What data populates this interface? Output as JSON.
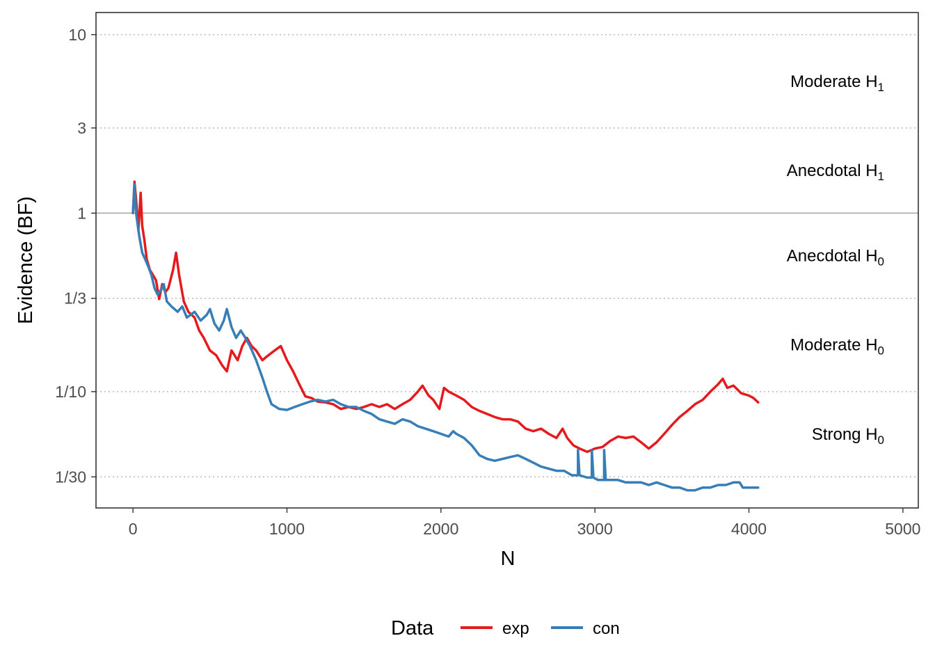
{
  "chart_data": {
    "type": "line",
    "xlabel": "N",
    "ylabel": "Evidence (BF)",
    "xlim": [
      -240,
      5100
    ],
    "ylim": [
      0.0223,
      13.3
    ],
    "y_scale": "log",
    "x_ticks": [
      0,
      1000,
      2000,
      3000,
      4000,
      5000
    ],
    "x_tick_labels": [
      "0",
      "1000",
      "2000",
      "3000",
      "4000",
      "5000"
    ],
    "y_ticks": [
      10,
      3,
      1,
      0.3333,
      0.1,
      0.0333
    ],
    "y_tick_labels": [
      "10",
      "3",
      "1",
      "1/3",
      "1/10",
      "1/30"
    ],
    "reference_line": 1,
    "grid": "horizontal dotted",
    "regions": [
      {
        "label": "Moderate H",
        "sub": "1",
        "y": 5.48
      },
      {
        "label": "Anecdotal H",
        "sub": "1",
        "y": 1.73
      },
      {
        "label": "Anecdotal H",
        "sub": "0",
        "y": 0.577
      },
      {
        "label": "Moderate H",
        "sub": "0",
        "y": 0.183
      },
      {
        "label": "Strong H",
        "sub": "0",
        "y": 0.0577
      }
    ],
    "legend": {
      "title": "Data",
      "position": "bottom"
    },
    "series": [
      {
        "name": "exp",
        "color": "#e41a1c",
        "points": [
          [
            0,
            1.0
          ],
          [
            10,
            1.5
          ],
          [
            20,
            1.2
          ],
          [
            35,
            0.8
          ],
          [
            50,
            1.3
          ],
          [
            60,
            0.85
          ],
          [
            75,
            0.7
          ],
          [
            90,
            0.55
          ],
          [
            110,
            0.48
          ],
          [
            130,
            0.45
          ],
          [
            150,
            0.42
          ],
          [
            170,
            0.33
          ],
          [
            190,
            0.4
          ],
          [
            210,
            0.36
          ],
          [
            230,
            0.38
          ],
          [
            260,
            0.48
          ],
          [
            280,
            0.6
          ],
          [
            300,
            0.45
          ],
          [
            330,
            0.32
          ],
          [
            360,
            0.28
          ],
          [
            400,
            0.26
          ],
          [
            430,
            0.22
          ],
          [
            460,
            0.2
          ],
          [
            500,
            0.17
          ],
          [
            540,
            0.16
          ],
          [
            580,
            0.14
          ],
          [
            610,
            0.13
          ],
          [
            640,
            0.17
          ],
          [
            680,
            0.15
          ],
          [
            710,
            0.18
          ],
          [
            740,
            0.2
          ],
          [
            770,
            0.18
          ],
          [
            800,
            0.17
          ],
          [
            840,
            0.15
          ],
          [
            880,
            0.16
          ],
          [
            920,
            0.17
          ],
          [
            960,
            0.18
          ],
          [
            1000,
            0.15
          ],
          [
            1040,
            0.13
          ],
          [
            1080,
            0.11
          ],
          [
            1120,
            0.094
          ],
          [
            1160,
            0.092
          ],
          [
            1200,
            0.088
          ],
          [
            1250,
            0.087
          ],
          [
            1300,
            0.085
          ],
          [
            1350,
            0.08
          ],
          [
            1400,
            0.082
          ],
          [
            1450,
            0.08
          ],
          [
            1500,
            0.082
          ],
          [
            1550,
            0.085
          ],
          [
            1600,
            0.082
          ],
          [
            1650,
            0.085
          ],
          [
            1700,
            0.08
          ],
          [
            1750,
            0.085
          ],
          [
            1800,
            0.09
          ],
          [
            1850,
            0.1
          ],
          [
            1880,
            0.108
          ],
          [
            1920,
            0.095
          ],
          [
            1950,
            0.09
          ],
          [
            1990,
            0.08
          ],
          [
            2020,
            0.105
          ],
          [
            2050,
            0.1
          ],
          [
            2100,
            0.095
          ],
          [
            2150,
            0.09
          ],
          [
            2200,
            0.082
          ],
          [
            2250,
            0.078
          ],
          [
            2300,
            0.075
          ],
          [
            2350,
            0.072
          ],
          [
            2400,
            0.07
          ],
          [
            2450,
            0.07
          ],
          [
            2500,
            0.068
          ],
          [
            2550,
            0.062
          ],
          [
            2600,
            0.06
          ],
          [
            2650,
            0.062
          ],
          [
            2700,
            0.058
          ],
          [
            2750,
            0.055
          ],
          [
            2790,
            0.062
          ],
          [
            2820,
            0.055
          ],
          [
            2860,
            0.05
          ],
          [
            2900,
            0.048
          ],
          [
            2950,
            0.046
          ],
          [
            3000,
            0.048
          ],
          [
            3050,
            0.049
          ],
          [
            3100,
            0.053
          ],
          [
            3150,
            0.056
          ],
          [
            3200,
            0.055
          ],
          [
            3250,
            0.056
          ],
          [
            3300,
            0.052
          ],
          [
            3350,
            0.048
          ],
          [
            3400,
            0.052
          ],
          [
            3450,
            0.058
          ],
          [
            3500,
            0.065
          ],
          [
            3550,
            0.072
          ],
          [
            3600,
            0.078
          ],
          [
            3650,
            0.085
          ],
          [
            3700,
            0.09
          ],
          [
            3750,
            0.1
          ],
          [
            3800,
            0.11
          ],
          [
            3830,
            0.118
          ],
          [
            3860,
            0.105
          ],
          [
            3900,
            0.108
          ],
          [
            3950,
            0.098
          ],
          [
            4000,
            0.095
          ],
          [
            4030,
            0.092
          ],
          [
            4060,
            0.087
          ]
        ]
      },
      {
        "name": "con",
        "color": "#377eb8",
        "points": [
          [
            0,
            1.0
          ],
          [
            10,
            1.45
          ],
          [
            20,
            1.0
          ],
          [
            40,
            0.75
          ],
          [
            60,
            0.6
          ],
          [
            80,
            0.55
          ],
          [
            100,
            0.5
          ],
          [
            120,
            0.45
          ],
          [
            140,
            0.38
          ],
          [
            160,
            0.35
          ],
          [
            180,
            0.37
          ],
          [
            200,
            0.4
          ],
          [
            220,
            0.32
          ],
          [
            250,
            0.3
          ],
          [
            290,
            0.28
          ],
          [
            320,
            0.3
          ],
          [
            350,
            0.26
          ],
          [
            400,
            0.28
          ],
          [
            440,
            0.25
          ],
          [
            480,
            0.27
          ],
          [
            500,
            0.29
          ],
          [
            530,
            0.24
          ],
          [
            560,
            0.22
          ],
          [
            590,
            0.25
          ],
          [
            610,
            0.29
          ],
          [
            640,
            0.23
          ],
          [
            670,
            0.2
          ],
          [
            700,
            0.22
          ],
          [
            730,
            0.2
          ],
          [
            760,
            0.18
          ],
          [
            800,
            0.15
          ],
          [
            840,
            0.12
          ],
          [
            870,
            0.1
          ],
          [
            900,
            0.085
          ],
          [
            950,
            0.08
          ],
          [
            1000,
            0.079
          ],
          [
            1050,
            0.082
          ],
          [
            1100,
            0.085
          ],
          [
            1150,
            0.088
          ],
          [
            1200,
            0.09
          ],
          [
            1250,
            0.088
          ],
          [
            1300,
            0.09
          ],
          [
            1350,
            0.085
          ],
          [
            1400,
            0.082
          ],
          [
            1450,
            0.082
          ],
          [
            1500,
            0.078
          ],
          [
            1550,
            0.075
          ],
          [
            1600,
            0.07
          ],
          [
            1650,
            0.068
          ],
          [
            1700,
            0.066
          ],
          [
            1750,
            0.07
          ],
          [
            1800,
            0.068
          ],
          [
            1850,
            0.064
          ],
          [
            1900,
            0.062
          ],
          [
            1950,
            0.06
          ],
          [
            2000,
            0.058
          ],
          [
            2050,
            0.056
          ],
          [
            2080,
            0.06
          ],
          [
            2100,
            0.058
          ],
          [
            2150,
            0.055
          ],
          [
            2200,
            0.05
          ],
          [
            2250,
            0.044
          ],
          [
            2300,
            0.042
          ],
          [
            2350,
            0.041
          ],
          [
            2400,
            0.042
          ],
          [
            2450,
            0.043
          ],
          [
            2500,
            0.044
          ],
          [
            2550,
            0.042
          ],
          [
            2600,
            0.04
          ],
          [
            2650,
            0.038
          ],
          [
            2700,
            0.037
          ],
          [
            2750,
            0.036
          ],
          [
            2800,
            0.036
          ],
          [
            2850,
            0.034
          ],
          [
            2890,
            0.034
          ],
          [
            2890,
            0.047
          ],
          [
            2900,
            0.034
          ],
          [
            2950,
            0.033
          ],
          [
            2980,
            0.033
          ],
          [
            2980,
            0.047
          ],
          [
            2990,
            0.033
          ],
          [
            3020,
            0.032
          ],
          [
            3060,
            0.032
          ],
          [
            3060,
            0.047
          ],
          [
            3070,
            0.032
          ],
          [
            3100,
            0.032
          ],
          [
            3150,
            0.032
          ],
          [
            3200,
            0.031
          ],
          [
            3250,
            0.031
          ],
          [
            3300,
            0.031
          ],
          [
            3350,
            0.03
          ],
          [
            3400,
            0.031
          ],
          [
            3450,
            0.03
          ],
          [
            3500,
            0.029
          ],
          [
            3550,
            0.029
          ],
          [
            3600,
            0.028
          ],
          [
            3650,
            0.028
          ],
          [
            3700,
            0.029
          ],
          [
            3750,
            0.029
          ],
          [
            3800,
            0.03
          ],
          [
            3850,
            0.03
          ],
          [
            3900,
            0.031
          ],
          [
            3940,
            0.031
          ],
          [
            3960,
            0.029
          ],
          [
            4000,
            0.029
          ],
          [
            4060,
            0.029
          ]
        ]
      }
    ]
  }
}
